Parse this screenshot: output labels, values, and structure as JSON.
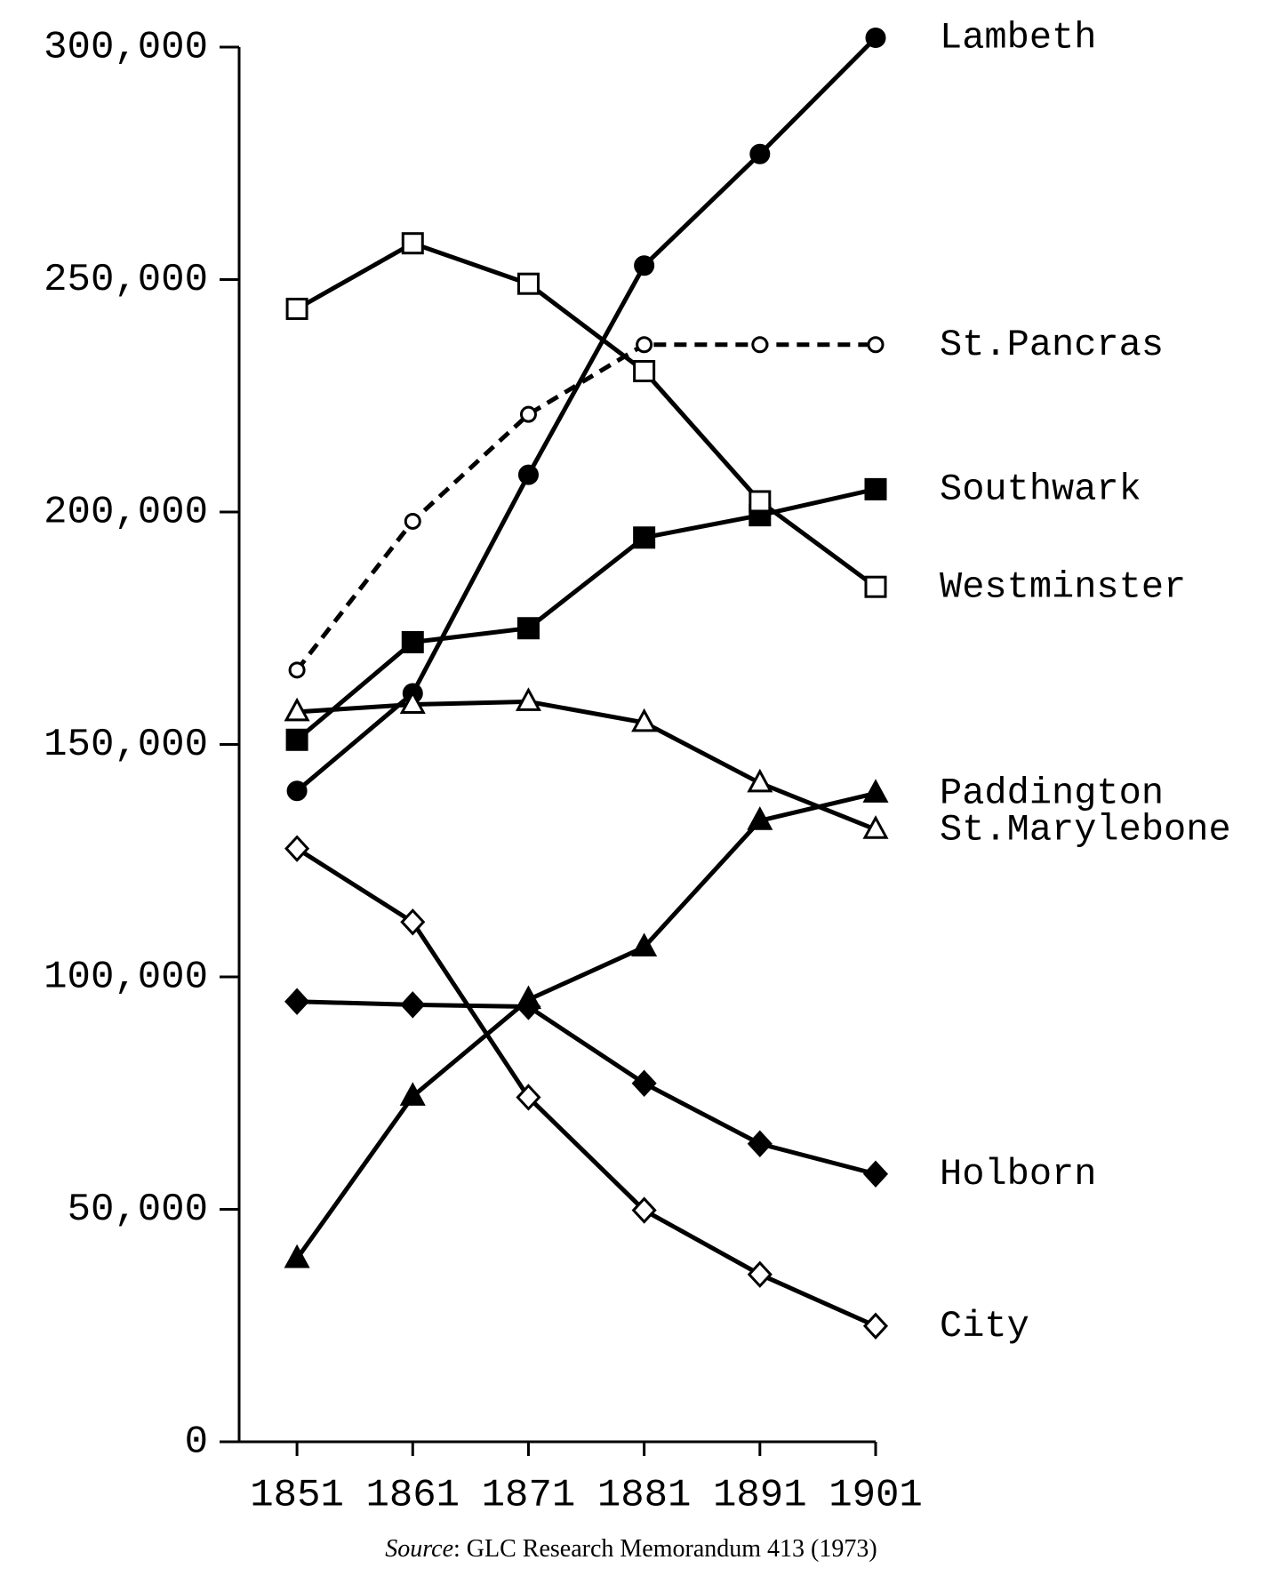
{
  "chart_data": {
    "type": "line",
    "source_prefix": "Source",
    "source_text": ": GLC Research Memorandum 413 (1973)",
    "x": [
      1851,
      1861,
      1871,
      1881,
      1891,
      1901
    ],
    "xlim": [
      1846,
      1901
    ],
    "xticks": [
      1851,
      1861,
      1871,
      1881,
      1891,
      1901
    ],
    "ylim": [
      0,
      300000
    ],
    "yticks": [
      0,
      {
        "value": 50000,
        "label": "50,000"
      },
      {
        "value": 100000,
        "label": "100,000"
      },
      {
        "value": 150000,
        "label": "150,000"
      },
      {
        "value": 200000,
        "label": "200,000"
      },
      {
        "value": 250000,
        "label": "250,000"
      },
      {
        "value": 300000,
        "label": "300,000"
      }
    ],
    "series": [
      {
        "name": "Lambeth",
        "color": "#000000",
        "marker": "circle",
        "filled": true,
        "dashed": false,
        "values": [
          140000,
          161000,
          208000,
          253000,
          277000,
          302000
        ]
      },
      {
        "name": "St.Pancras",
        "color": "#000000",
        "marker": "circle",
        "filled": false,
        "dashed": true,
        "values": [
          166000,
          198000,
          221000,
          236000,
          236000,
          236000
        ]
      },
      {
        "name": "Southwark",
        "color": "#000000",
        "marker": "square",
        "filled": true,
        "dashed": false,
        "values": [
          151000,
          172000,
          175000,
          194500,
          199300,
          204900
        ]
      },
      {
        "name": "Westminster",
        "color": "#000000",
        "marker": "square",
        "filled": false,
        "dashed": false,
        "values": [
          243700,
          257800,
          249100,
          230300,
          202300,
          183900
        ]
      },
      {
        "name": "Paddington",
        "color": "#000000",
        "marker": "triangle",
        "filled": true,
        "dashed": false,
        "values": [
          39400,
          74300,
          95100,
          106400,
          133600,
          139500
        ]
      },
      {
        "name": "St.Marylebone",
        "color": "#000000",
        "marker": "triangle",
        "filled": false,
        "dashed": false,
        "values": [
          157000,
          158600,
          159200,
          154700,
          141700,
          131700
        ]
      },
      {
        "name": "Holborn",
        "color": "#000000",
        "marker": "diamond",
        "filled": true,
        "dashed": false,
        "values": [
          94700,
          94000,
          93600,
          77100,
          64100,
          57600
        ]
      },
      {
        "name": "City",
        "color": "#000000",
        "marker": "diamond",
        "filled": false,
        "dashed": false,
        "values": [
          127600,
          111800,
          74100,
          49800,
          36000,
          24900
        ]
      }
    ]
  }
}
